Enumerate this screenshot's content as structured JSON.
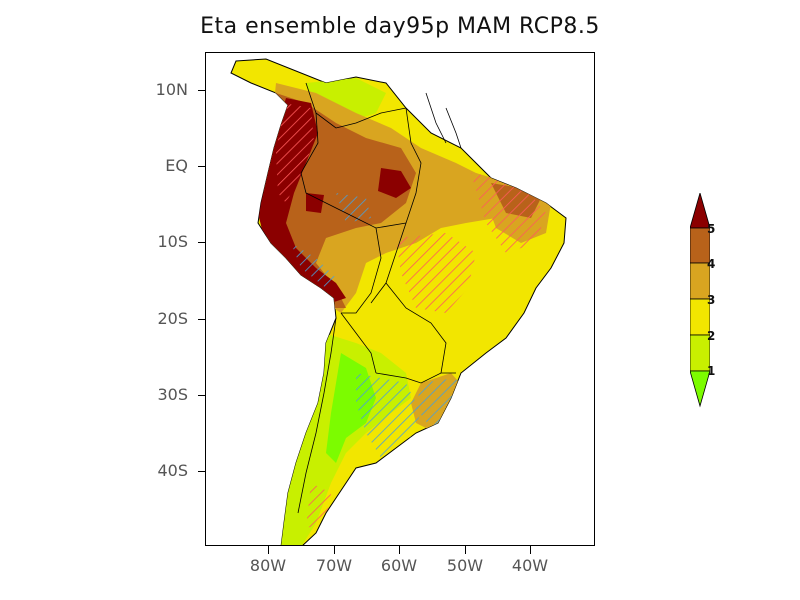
{
  "title": "Eta ensemble day95p MAM RCP8.5",
  "axes": {
    "lat_labels": [
      "10N",
      "EQ",
      "10S",
      "20S",
      "30S",
      "40S"
    ],
    "lon_labels": [
      "80W",
      "70W",
      "60W",
      "50W",
      "40W"
    ]
  },
  "colorbar": {
    "labels": [
      "5",
      "4",
      "3",
      "2",
      "1"
    ],
    "colors": [
      "#8b0000",
      "#b8621a",
      "#d9a520",
      "#f2e600",
      "#c8f000",
      "#7cfc00"
    ],
    "arrow_top_color": "#8b0000",
    "arrow_bottom_color": "#7cfc00"
  },
  "palette": {
    "c5": "#8b0000",
    "c4": "#b8621a",
    "c3": "#d9a520",
    "c2": "#f2e600",
    "c1": "#c8f000",
    "c0": "#7cfc00",
    "hatch_red": "#ff5a5a",
    "hatch_blue": "#4aa0d8"
  }
}
